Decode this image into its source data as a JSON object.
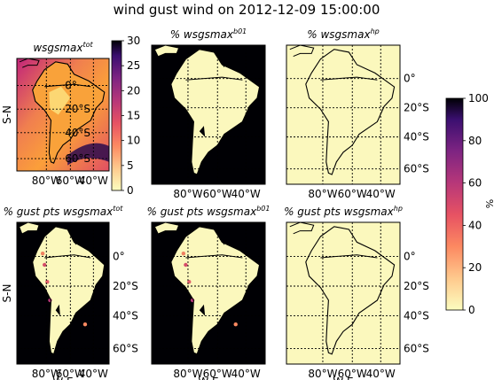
{
  "figure": {
    "title": "wind gust wind on 2012-12-09 15:00:00"
  },
  "colors": {
    "land": "#fbf8bd",
    "ocean_dark": "#000004",
    "grid": "#000000",
    "coast": "#000000"
  },
  "chart_data": [
    {
      "type": "heatmap",
      "title": "wsgsmax^tot",
      "title_main": "wsgsmax",
      "title_sup": "tot",
      "xticks": [
        "80°W",
        "60°W",
        "40°W"
      ],
      "yticks": [
        "0°",
        "20°S",
        "40°S",
        "60°S"
      ],
      "ylabel": "S-N",
      "colorbar": {
        "ticks": [
          "0",
          "5",
          "10",
          "15",
          "20",
          "25",
          "30"
        ],
        "range": [
          0,
          30
        ],
        "cmap": "magma_r",
        "label": ""
      }
    },
    {
      "type": "heatmap",
      "title": "% wsgsmax^b01",
      "title_main": "% wsgsmax",
      "title_sup": "b01",
      "xticks": [
        "80°W",
        "60°W",
        "40°W"
      ],
      "yticks": []
    },
    {
      "type": "heatmap",
      "title": "% wsgsmax^hp",
      "title_main": "% wsgsmax",
      "title_sup": "hp",
      "xticks": [
        "80°W",
        "60°W",
        "40°W"
      ],
      "yticks": [
        "0°",
        "20°S",
        "40°S",
        "60°S"
      ]
    },
    {
      "type": "heatmap",
      "title": "% gust pts wsgsmax^tot",
      "title_main": "% gust pts wsgsmax",
      "title_sup": "tot",
      "xticks": [
        "80°W",
        "60°W",
        "40°W"
      ],
      "yticks": [
        "0°",
        "20°S",
        "40°S",
        "60°S"
      ],
      "ylabel": "S-N",
      "xlabel": "W-E"
    },
    {
      "type": "heatmap",
      "title": "% gust pts wsgsmax^b01",
      "title_main": "% gust pts wsgsmax",
      "title_sup": "b01",
      "xticks": [
        "80°W",
        "60°W",
        "40°W"
      ],
      "yticks": [],
      "xlabel": "W-E"
    },
    {
      "type": "heatmap",
      "title": "% gust pts wsgsmax^hp",
      "title_main": "% gust pts wsgsmax",
      "title_sup": "hp",
      "xticks": [
        "80°W",
        "60°W",
        "40°W"
      ],
      "yticks": [
        "0°",
        "20°S",
        "40°S",
        "60°S"
      ],
      "xlabel": "W-E"
    }
  ],
  "shared_colorbar": {
    "ticks": [
      "0",
      "20",
      "40",
      "60",
      "80",
      "100"
    ],
    "range": [
      0,
      100
    ],
    "label": "%",
    "cmap": "magma_r"
  }
}
